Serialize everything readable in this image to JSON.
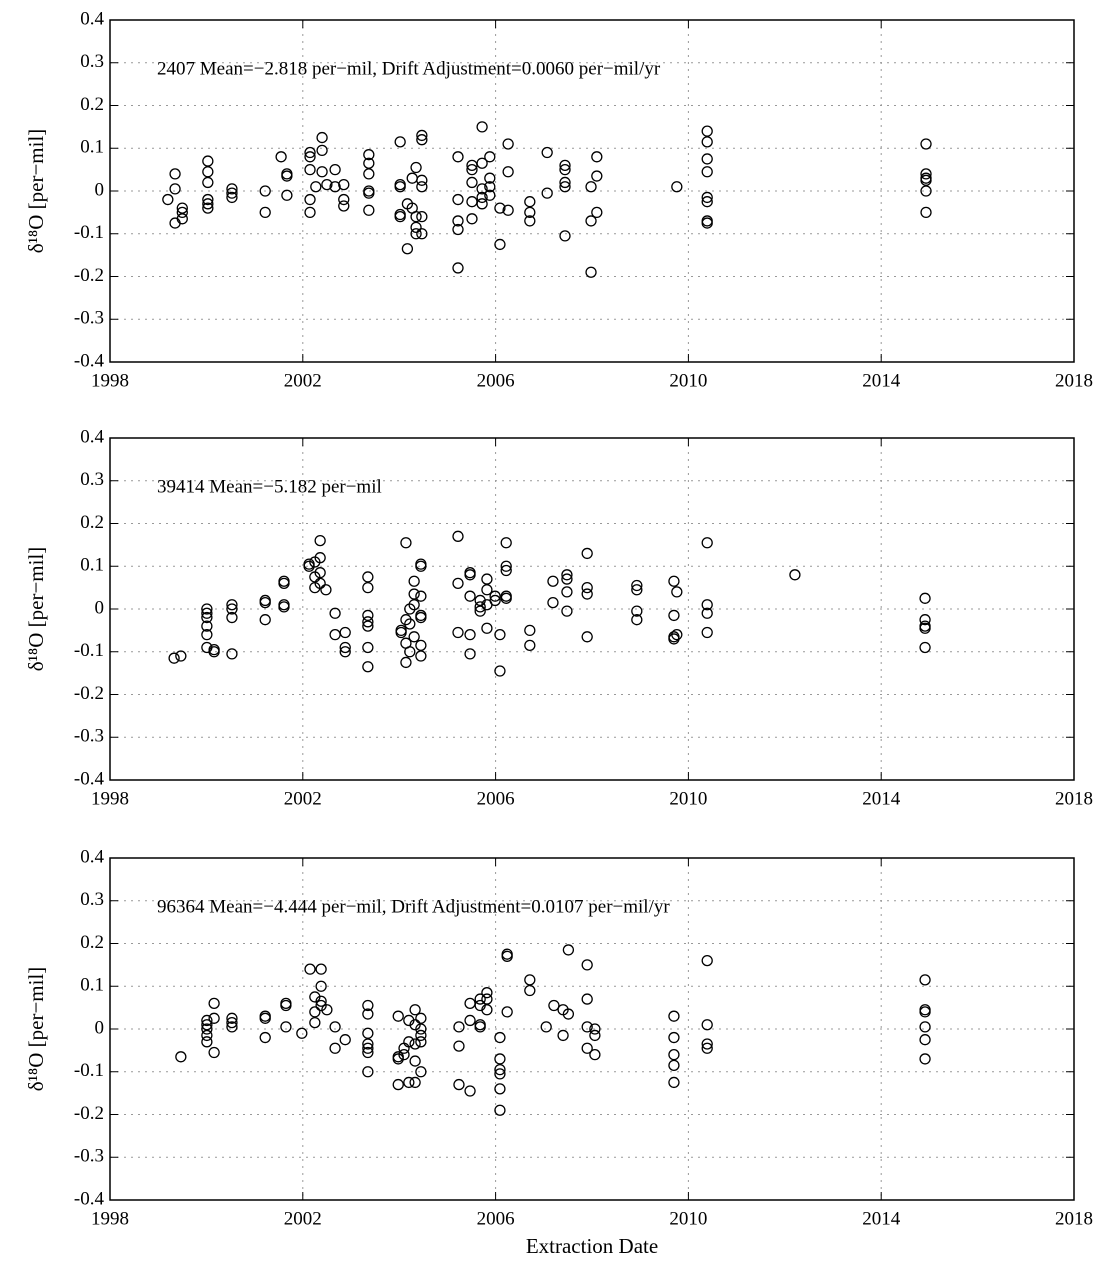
{
  "chart_data": [
    {
      "type": "scatter",
      "annotation": "2407 Mean=−2.818 per−mil, Drift Adjustment=0.0060 per−mil/yr",
      "ylabel": "δ¹⁸O [per−mil]",
      "xlim": [
        1998,
        2018
      ],
      "xticks": [
        1998,
        2002,
        2006,
        2010,
        2014,
        2018
      ],
      "ylim": [
        -0.4,
        0.4
      ],
      "yticks": [
        -0.4,
        -0.3,
        -0.2,
        -0.1,
        0,
        0.1,
        0.2,
        0.3,
        0.4
      ],
      "grid": true,
      "color": "#000000",
      "x": [
        1999.2,
        1999.35,
        1999.35,
        1999.35,
        1999.5,
        1999.5,
        1999.5,
        2000.03,
        2000.03,
        2000.03,
        2000.03,
        2000.03,
        2000.03,
        2000.53,
        2000.53,
        2000.53,
        2001.22,
        2001.22,
        2001.55,
        2001.67,
        2001.67,
        2001.67,
        2002.15,
        2002.15,
        2002.15,
        2002.15,
        2002.15,
        2002.27,
        2002.4,
        2002.4,
        2002.4,
        2002.5,
        2002.67,
        2002.67,
        2002.85,
        2002.85,
        2002.85,
        2003.37,
        2003.37,
        2003.37,
        2003.37,
        2003.37,
        2003.37,
        2004.02,
        2004.02,
        2004.02,
        2004.02,
        2004.02,
        2004.17,
        2004.17,
        2004.27,
        2004.27,
        2004.35,
        2004.35,
        2004.35,
        2004.35,
        2004.47,
        2004.47,
        2004.47,
        2004.47,
        2004.47,
        2004.47,
        2005.22,
        2005.22,
        2005.22,
        2005.22,
        2005.22,
        2005.51,
        2005.51,
        2005.51,
        2005.51,
        2005.51,
        2005.72,
        2005.72,
        2005.72,
        2005.72,
        2005.72,
        2005.88,
        2005.88,
        2005.88,
        2005.88,
        2006.09,
        2006.09,
        2006.26,
        2006.26,
        2006.26,
        2006.71,
        2006.71,
        2006.71,
        2007.07,
        2007.07,
        2007.44,
        2007.44,
        2007.44,
        2007.44,
        2007.44,
        2007.98,
        2007.98,
        2007.98,
        2008.1,
        2008.1,
        2008.1,
        2009.76,
        2010.39,
        2010.39,
        2010.39,
        2010.39,
        2010.39,
        2010.39,
        2010.39,
        2010.39,
        2014.93,
        2014.93,
        2014.93,
        2014.93,
        2014.93,
        2014.93
      ],
      "values": [
        -0.02,
        0.04,
        0.005,
        -0.075,
        -0.04,
        -0.05,
        -0.065,
        0.07,
        0.045,
        0.02,
        -0.02,
        -0.03,
        -0.04,
        0.005,
        -0.005,
        -0.015,
        0,
        -0.05,
        0.08,
        0.04,
        0.035,
        -0.01,
        0.09,
        0.08,
        0.05,
        -0.02,
        -0.05,
        0.01,
        0.125,
        0.095,
        0.045,
        0.015,
        0.01,
        0.05,
        0.015,
        -0.02,
        -0.035,
        0.085,
        0.065,
        0.04,
        0,
        -0.005,
        -0.045,
        0.115,
        0.015,
        0.01,
        -0.055,
        -0.06,
        -0.03,
        -0.135,
        -0.04,
        0.03,
        0.055,
        -0.06,
        -0.1,
        -0.085,
        0.13,
        0.12,
        0.025,
        0.01,
        -0.06,
        -0.1,
        0.08,
        -0.02,
        -0.07,
        -0.09,
        -0.18,
        0.06,
        0.05,
        0.02,
        -0.025,
        -0.065,
        0.15,
        0.065,
        0.005,
        -0.015,
        -0.03,
        0.08,
        0.03,
        0.01,
        -0.01,
        -0.04,
        -0.125,
        0.11,
        0.045,
        -0.045,
        -0.025,
        -0.05,
        -0.07,
        0.09,
        -0.005,
        0.06,
        0.05,
        0.02,
        0.01,
        -0.105,
        0.01,
        -0.07,
        -0.19,
        0.08,
        0.035,
        -0.05,
        0.01,
        0.14,
        0.115,
        0.075,
        0.045,
        -0.015,
        -0.025,
        -0.07,
        -0.075,
        0.11,
        0.04,
        0.03,
        0.025,
        0,
        -0.05
      ]
    },
    {
      "type": "scatter",
      "annotation": "39414 Mean=−5.182 per−mil",
      "ylabel": "δ¹⁸O [per−mil]",
      "xlim": [
        1998,
        2018
      ],
      "xticks": [
        1998,
        2002,
        2006,
        2010,
        2014,
        2018
      ],
      "ylim": [
        -0.4,
        0.4
      ],
      "yticks": [
        -0.4,
        -0.3,
        -0.2,
        -0.1,
        0,
        0.1,
        0.2,
        0.3,
        0.4
      ],
      "grid": true,
      "color": "#000000",
      "x": [
        1999.33,
        1999.47,
        2000.01,
        2000.01,
        2000.01,
        2000.01,
        2000.01,
        2000.01,
        2000.16,
        2000.16,
        2000.53,
        2000.53,
        2000.53,
        2000.53,
        2001.22,
        2001.22,
        2001.22,
        2001.61,
        2001.61,
        2001.61,
        2001.61,
        2002.13,
        2002.13,
        2002.25,
        2002.25,
        2002.25,
        2002.36,
        2002.36,
        2002.36,
        2002.36,
        2002.48,
        2002.67,
        2002.67,
        2002.88,
        2002.88,
        2002.88,
        2003.35,
        2003.35,
        2003.35,
        2003.35,
        2003.35,
        2003.35,
        2003.35,
        2004.04,
        2004.04,
        2004.14,
        2004.14,
        2004.14,
        2004.14,
        2004.22,
        2004.22,
        2004.22,
        2004.31,
        2004.31,
        2004.31,
        2004.31,
        2004.45,
        2004.45,
        2004.45,
        2004.45,
        2004.45,
        2004.45,
        2004.45,
        2005.22,
        2005.22,
        2005.22,
        2005.47,
        2005.47,
        2005.47,
        2005.47,
        2005.47,
        2005.68,
        2005.68,
        2005.68,
        2005.82,
        2005.82,
        2005.82,
        2005.82,
        2005.99,
        2005.99,
        2006.09,
        2006.09,
        2006.22,
        2006.22,
        2006.22,
        2006.22,
        2006.22,
        2006.71,
        2006.71,
        2007.19,
        2007.19,
        2007.48,
        2007.48,
        2007.48,
        2007.48,
        2007.9,
        2007.9,
        2007.9,
        2007.9,
        2008.93,
        2008.93,
        2008.93,
        2008.93,
        2009.7,
        2009.7,
        2009.7,
        2009.7,
        2009.76,
        2009.76,
        2010.39,
        2010.39,
        2010.39,
        2010.39,
        2012.21,
        2014.91,
        2014.91,
        2014.91,
        2014.91,
        2014.91
      ],
      "values": [
        -0.115,
        -0.11,
        0,
        -0.01,
        -0.02,
        -0.04,
        -0.06,
        -0.09,
        -0.095,
        -0.1,
        0.01,
        0,
        -0.02,
        -0.105,
        0.02,
        0.015,
        -0.025,
        0.065,
        0.06,
        0.01,
        0.005,
        0.105,
        0.1,
        0.11,
        0.075,
        0.05,
        0.16,
        0.12,
        0.085,
        0.06,
        0.045,
        -0.01,
        -0.06,
        -0.055,
        -0.09,
        -0.1,
        0.075,
        0.05,
        -0.015,
        -0.03,
        -0.04,
        -0.09,
        -0.135,
        -0.05,
        -0.055,
        0.155,
        -0.025,
        -0.08,
        -0.125,
        0,
        -0.035,
        -0.1,
        0.065,
        0.035,
        0.01,
        -0.065,
        0.105,
        0.1,
        0.03,
        -0.015,
        -0.02,
        -0.085,
        -0.11,
        0.17,
        0.06,
        -0.055,
        0.085,
        0.08,
        0.03,
        -0.06,
        -0.105,
        0.02,
        0.005,
        -0.005,
        0.07,
        0.045,
        0.01,
        -0.045,
        0.03,
        0.02,
        -0.06,
        -0.145,
        0.155,
        0.1,
        0.09,
        0.03,
        0.025,
        -0.05,
        -0.085,
        0.065,
        0.015,
        0.08,
        0.07,
        0.04,
        -0.005,
        0.13,
        0.05,
        0.035,
        -0.065,
        0.055,
        0.045,
        -0.005,
        -0.025,
        0.065,
        -0.015,
        -0.065,
        -0.07,
        0.04,
        -0.06,
        0.155,
        0.01,
        -0.01,
        -0.055,
        0.08,
        0.025,
        -0.025,
        -0.04,
        -0.045,
        -0.09
      ]
    },
    {
      "type": "scatter",
      "annotation": "96364 Mean=−4.444 per−mil, Drift Adjustment=0.0107 per−mil/yr",
      "ylabel": "δ¹⁸O [per−mil]",
      "xlabel": "Extraction Date",
      "xlim": [
        1998,
        2018
      ],
      "xticks": [
        1998,
        2002,
        2006,
        2010,
        2014,
        2018
      ],
      "ylim": [
        -0.4,
        0.4
      ],
      "yticks": [
        -0.4,
        -0.3,
        -0.2,
        -0.1,
        0,
        0.1,
        0.2,
        0.3,
        0.4
      ],
      "grid": true,
      "color": "#000000",
      "x": [
        1999.47,
        2000.01,
        2000.01,
        2000.01,
        2000.01,
        2000.01,
        2000.16,
        2000.16,
        2000.16,
        2000.53,
        2000.53,
        2000.53,
        2001.22,
        2001.22,
        2001.22,
        2001.65,
        2001.65,
        2001.65,
        2001.98,
        2002.15,
        2002.25,
        2002.25,
        2002.25,
        2002.38,
        2002.38,
        2002.38,
        2002.38,
        2002.5,
        2002.67,
        2002.67,
        2002.88,
        2003.35,
        2003.35,
        2003.35,
        2003.35,
        2003.35,
        2003.35,
        2003.35,
        2003.98,
        2003.98,
        2003.98,
        2003.98,
        2004.1,
        2004.1,
        2004.2,
        2004.2,
        2004.2,
        2004.33,
        2004.33,
        2004.33,
        2004.33,
        2004.33,
        2004.45,
        2004.45,
        2004.45,
        2004.45,
        2004.45,
        2005.24,
        2005.24,
        2005.24,
        2005.47,
        2005.47,
        2005.47,
        2005.68,
        2005.68,
        2005.68,
        2005.68,
        2005.82,
        2005.82,
        2005.82,
        2006.09,
        2006.09,
        2006.09,
        2006.09,
        2006.09,
        2006.09,
        2006.24,
        2006.24,
        2006.24,
        2006.71,
        2006.71,
        2007.05,
        2007.21,
        2007.4,
        2007.4,
        2007.51,
        2007.51,
        2007.9,
        2007.9,
        2007.9,
        2007.9,
        2008.06,
        2008.06,
        2008.06,
        2009.7,
        2009.7,
        2009.7,
        2009.7,
        2009.7,
        2010.39,
        2010.39,
        2010.39,
        2010.39,
        2014.91,
        2014.91,
        2014.91,
        2014.91,
        2014.91,
        2014.91
      ],
      "values": [
        -0.065,
        0.02,
        0.01,
        0,
        -0.015,
        -0.03,
        0.06,
        0.025,
        -0.055,
        0.025,
        0.015,
        0.005,
        0.03,
        0.025,
        -0.02,
        0.06,
        0.055,
        0.005,
        -0.01,
        0.14,
        0.075,
        0.04,
        0.015,
        0.14,
        0.1,
        0.065,
        0.055,
        0.045,
        0.005,
        -0.045,
        -0.025,
        0.055,
        0.035,
        -0.01,
        -0.035,
        -0.045,
        -0.055,
        -0.1,
        0.03,
        -0.065,
        -0.07,
        -0.13,
        -0.045,
        -0.06,
        0.02,
        -0.03,
        -0.125,
        0.045,
        0.01,
        -0.035,
        -0.075,
        -0.125,
        0.025,
        0,
        -0.015,
        -0.03,
        -0.1,
        0.005,
        -0.04,
        -0.13,
        0.06,
        0.02,
        -0.145,
        0.07,
        0.055,
        0.01,
        0.005,
        0.085,
        0.07,
        0.045,
        -0.02,
        -0.07,
        -0.095,
        -0.105,
        -0.14,
        -0.19,
        0.175,
        0.17,
        0.04,
        0.115,
        0.09,
        0.005,
        0.055,
        0.045,
        -0.015,
        0.185,
        0.035,
        0.15,
        0.07,
        0.005,
        -0.045,
        0,
        -0.015,
        -0.06,
        0.03,
        -0.02,
        -0.06,
        -0.085,
        -0.125,
        0.16,
        0.01,
        -0.035,
        -0.045,
        0.115,
        0.045,
        0.04,
        0.005,
        -0.025,
        -0.07
      ]
    }
  ]
}
